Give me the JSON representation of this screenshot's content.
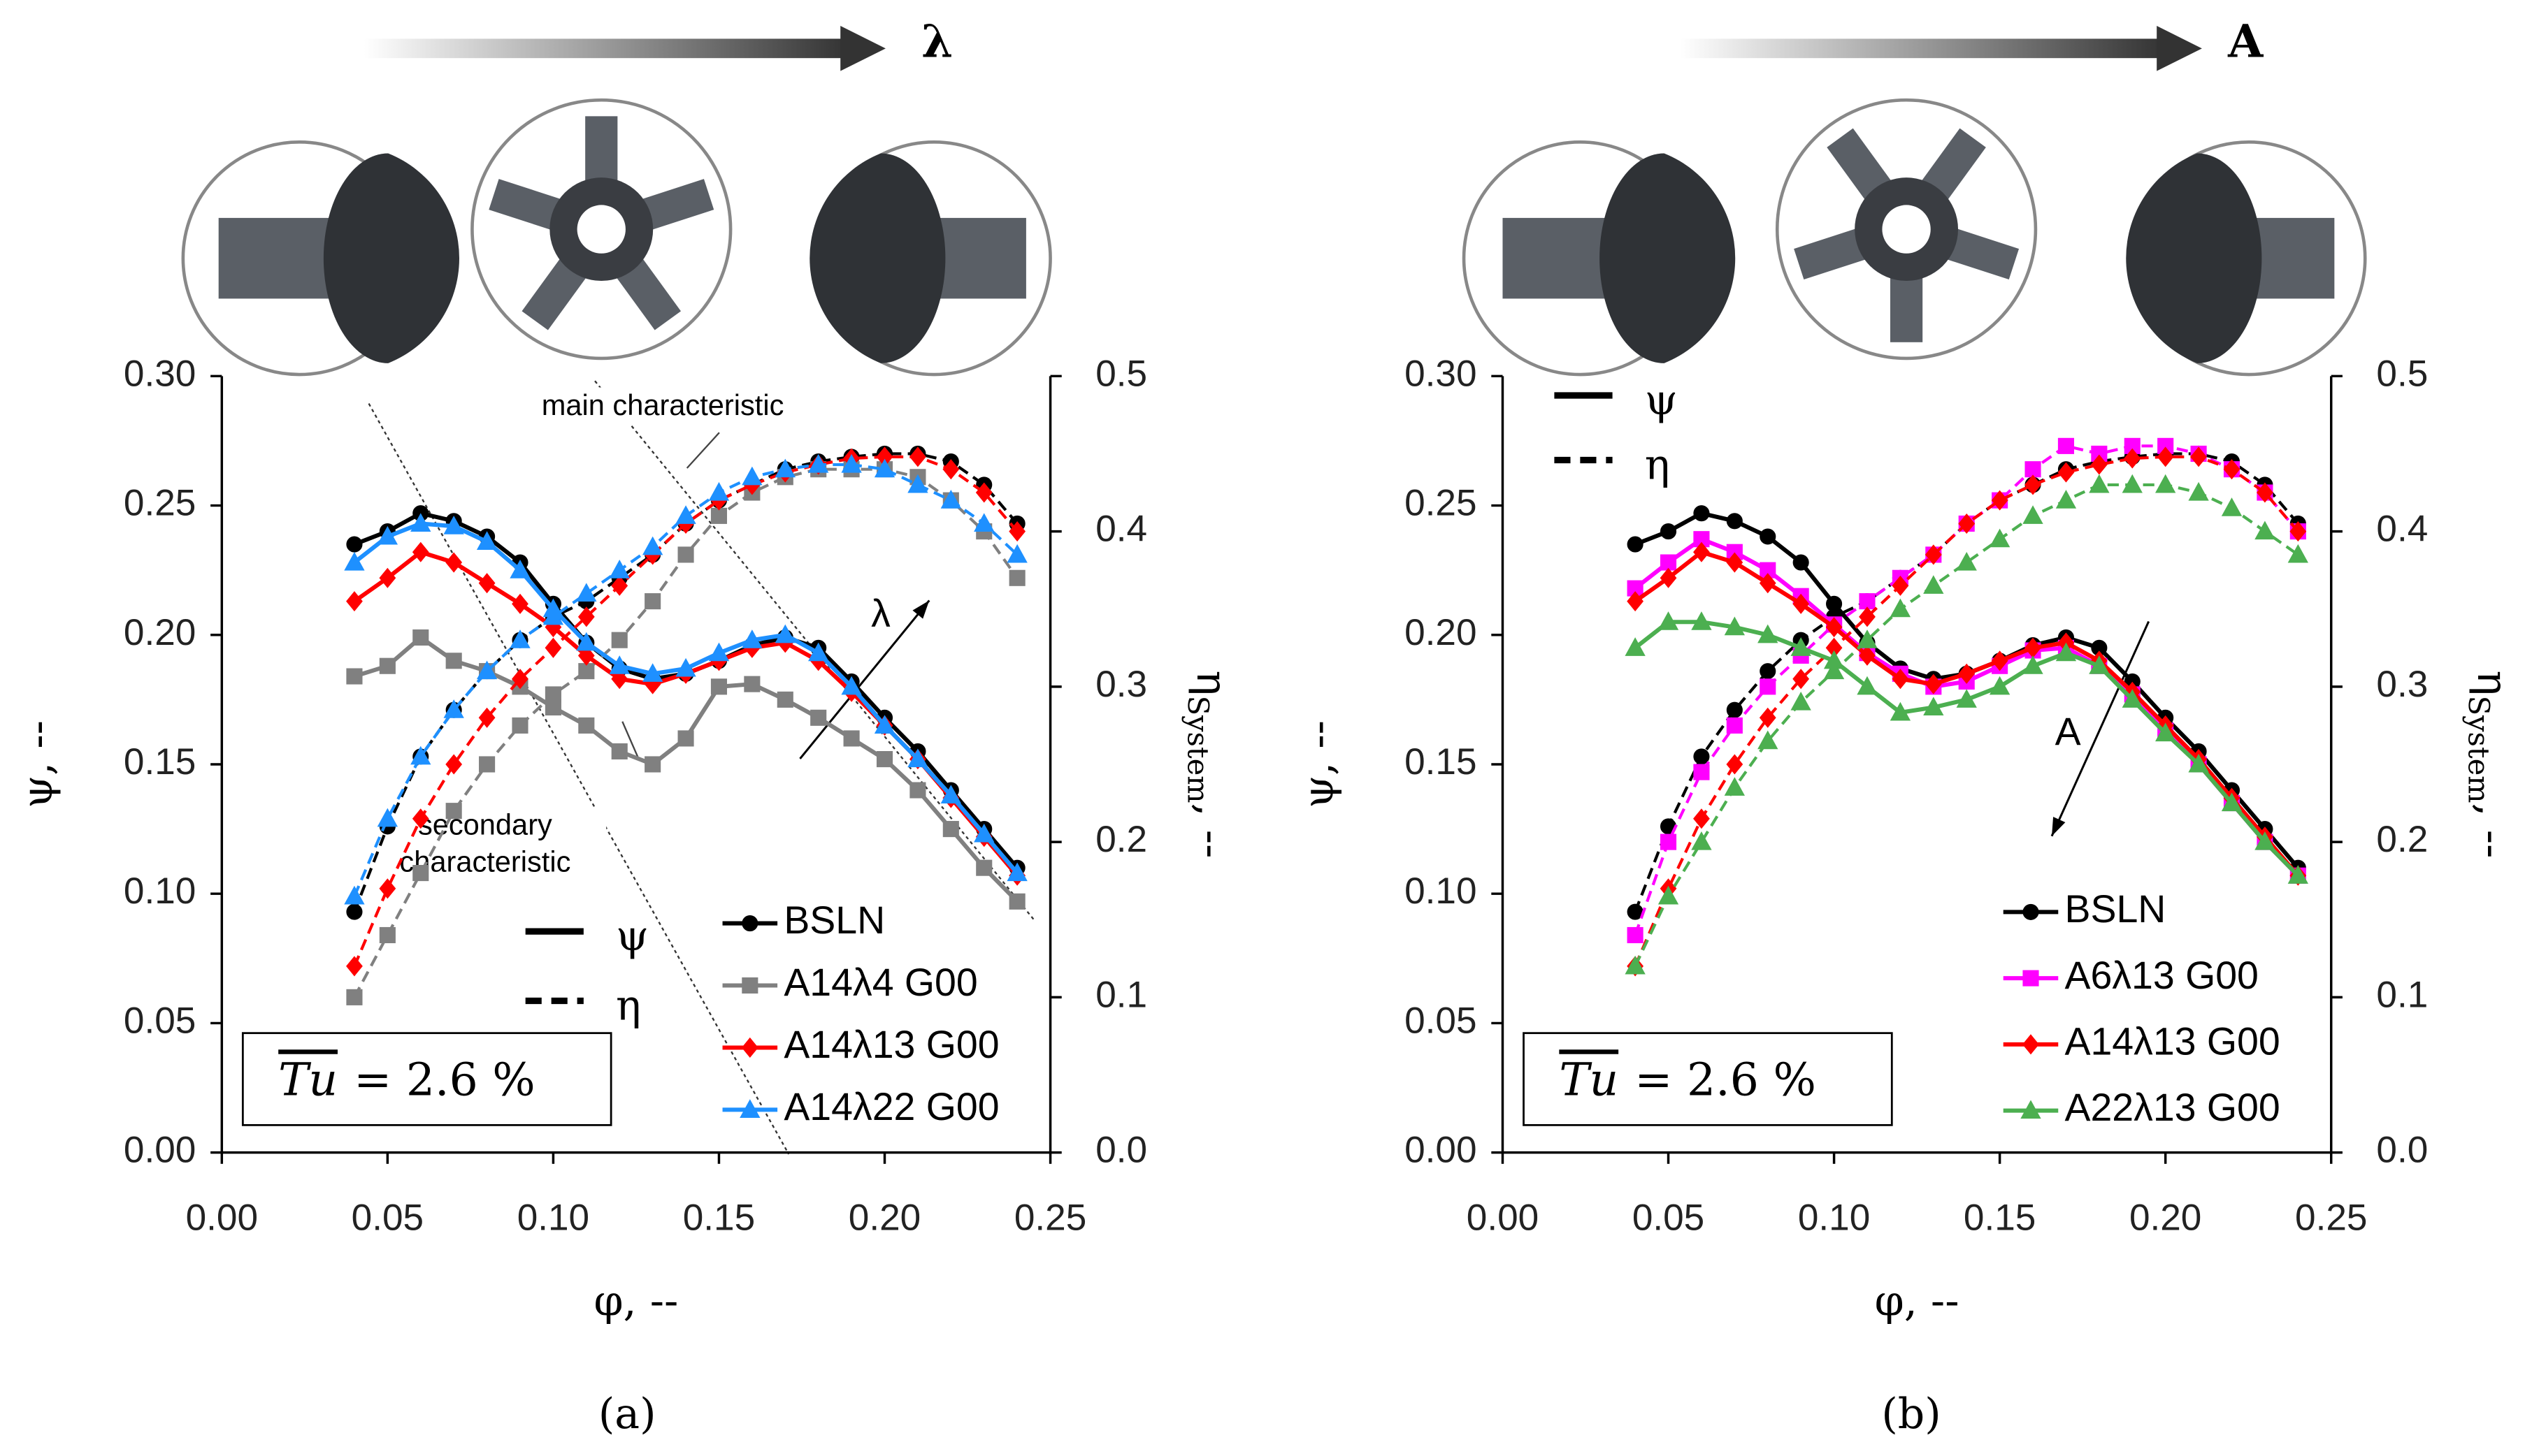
{
  "chart_data": [
    {
      "type": "line",
      "panel_label": "(a)",
      "top_arrow_label": "λ",
      "trend_label": "λ",
      "xlabel": "φ, --",
      "ylabel": "ψ, --",
      "y2label": {
        "symbol": "η",
        "subscript": "System",
        "suffix": ", --"
      },
      "style_legend": [
        "ψ",
        "η"
      ],
      "tu": {
        "symbol": "Tu",
        "text": "= 2.6 %"
      },
      "annotations": [
        "main characteristic",
        "secondary characteristic"
      ],
      "xlim": [
        0,
        0.25
      ],
      "ylim": [
        0,
        0.3
      ],
      "y2lim": [
        0,
        0.5
      ],
      "xticks": [
        {
          "value": 0,
          "label": "0.00"
        },
        {
          "value": 0.05,
          "label": "0.05"
        },
        {
          "value": 0.1,
          "label": "0.10"
        },
        {
          "value": 0.15,
          "label": "0.15"
        },
        {
          "value": 0.2,
          "label": "0.20"
        },
        {
          "value": 0.25,
          "label": "0.25"
        }
      ],
      "yticks": [
        {
          "value": 0,
          "label": "0.00"
        },
        {
          "value": 0.05,
          "label": "0.05"
        },
        {
          "value": 0.1,
          "label": "0.10"
        },
        {
          "value": 0.15,
          "label": "0.15"
        },
        {
          "value": 0.2,
          "label": "0.20"
        },
        {
          "value": 0.25,
          "label": "0.25"
        },
        {
          "value": 0.3,
          "label": "0.30"
        }
      ],
      "y2ticks": [
        {
          "value": 0,
          "label": "0.0"
        },
        0.1,
        0.2,
        0.3,
        0.4,
        0.5
      ],
      "x": [
        0.04,
        0.05,
        0.06,
        0.07,
        0.08,
        0.09,
        0.1,
        0.11,
        0.12,
        0.13,
        0.14,
        0.15,
        0.16,
        0.17,
        0.18,
        0.19,
        0.2,
        0.21,
        0.22,
        0.23,
        0.24
      ],
      "series": [
        {
          "name": "BSLN",
          "color": "#000000",
          "marker": "circle",
          "values": [
            0.235,
            0.24,
            0.247,
            0.244,
            0.238,
            0.228,
            0.212,
            0.197,
            0.187,
            0.183,
            0.185,
            0.19,
            0.196,
            0.199,
            0.195,
            0.182,
            0.168,
            0.155,
            0.14,
            0.125,
            0.11
          ],
          "y2_values": [
            0.155,
            0.21,
            0.255,
            0.285,
            0.31,
            0.33,
            0.345,
            0.355,
            0.37,
            0.385,
            0.405,
            0.42,
            0.43,
            0.44,
            0.445,
            0.448,
            0.45,
            0.45,
            0.445,
            0.43,
            0.405
          ]
        },
        {
          "name": "A14λ4 G00",
          "color": "#808080",
          "marker": "square",
          "values": [
            0.184,
            0.188,
            0.199,
            0.19,
            0.186,
            0.18,
            0.172,
            0.165,
            0.155,
            0.15,
            0.16,
            0.18,
            0.181,
            0.175,
            0.168,
            0.16,
            0.152,
            0.14,
            0.125,
            0.11,
            0.097
          ],
          "y2_values": [
            0.1,
            0.14,
            0.18,
            0.22,
            0.25,
            0.275,
            0.295,
            0.31,
            0.33,
            0.355,
            0.385,
            0.41,
            0.425,
            0.435,
            0.44,
            0.44,
            0.44,
            0.435,
            0.42,
            0.4,
            0.37
          ]
        },
        {
          "name": "A14λ13 G00",
          "color": "#ff0000",
          "marker": "diamond",
          "values": [
            0.213,
            0.222,
            0.232,
            0.228,
            0.22,
            0.212,
            0.203,
            0.192,
            0.183,
            0.181,
            0.185,
            0.19,
            0.195,
            0.197,
            0.19,
            0.178,
            0.165,
            0.152,
            0.137,
            0.122,
            0.107
          ],
          "y2_values": [
            0.12,
            0.17,
            0.215,
            0.25,
            0.28,
            0.305,
            0.325,
            0.345,
            0.365,
            0.385,
            0.405,
            0.42,
            0.43,
            0.438,
            0.443,
            0.447,
            0.448,
            0.448,
            0.44,
            0.425,
            0.4
          ]
        },
        {
          "name": "A14λ22 G00",
          "color": "#1e90ff",
          "marker": "triangle",
          "values": [
            0.228,
            0.238,
            0.243,
            0.242,
            0.236,
            0.225,
            0.21,
            0.197,
            0.188,
            0.185,
            0.187,
            0.193,
            0.198,
            0.2,
            0.193,
            0.18,
            0.165,
            0.152,
            0.138,
            0.123,
            0.108
          ],
          "y2_values": [
            0.165,
            0.215,
            0.255,
            0.285,
            0.31,
            0.33,
            0.345,
            0.36,
            0.375,
            0.39,
            0.41,
            0.425,
            0.435,
            0.44,
            0.443,
            0.443,
            0.44,
            0.43,
            0.42,
            0.405,
            0.385
          ]
        }
      ]
    },
    {
      "type": "line",
      "panel_label": "(b)",
      "top_arrow_label": "A",
      "trend_label": "A",
      "xlabel": "φ, --",
      "ylabel": "ψ, --",
      "y2label": {
        "symbol": "η",
        "subscript": "System",
        "suffix": ", --"
      },
      "style_legend": [
        "ψ",
        "η"
      ],
      "tu": {
        "symbol": "Tu",
        "text": "= 2.6 %"
      },
      "annotations": [],
      "xlim": [
        0,
        0.25
      ],
      "ylim": [
        0,
        0.3
      ],
      "y2lim": [
        0,
        0.5
      ],
      "xticks": [
        {
          "value": 0,
          "label": "0.00"
        },
        {
          "value": 0.05,
          "label": "0.05"
        },
        {
          "value": 0.1,
          "label": "0.10"
        },
        {
          "value": 0.15,
          "label": "0.15"
        },
        {
          "value": 0.2,
          "label": "0.20"
        },
        {
          "value": 0.25,
          "label": "0.25"
        }
      ],
      "yticks": [
        {
          "value": 0,
          "label": "0.00"
        },
        {
          "value": 0.05,
          "label": "0.05"
        },
        {
          "value": 0.1,
          "label": "0.10"
        },
        {
          "value": 0.15,
          "label": "0.15"
        },
        {
          "value": 0.2,
          "label": "0.20"
        },
        {
          "value": 0.25,
          "label": "0.25"
        },
        {
          "value": 0.3,
          "label": "0.30"
        }
      ],
      "y2ticks": [
        {
          "value": 0,
          "label": "0.0"
        },
        0.1,
        0.2,
        0.3,
        0.4,
        0.5
      ],
      "x": [
        0.04,
        0.05,
        0.06,
        0.07,
        0.08,
        0.09,
        0.1,
        0.11,
        0.12,
        0.13,
        0.14,
        0.15,
        0.16,
        0.17,
        0.18,
        0.19,
        0.2,
        0.21,
        0.22,
        0.23,
        0.24
      ],
      "series": [
        {
          "name": "BSLN",
          "color": "#000000",
          "marker": "circle",
          "values": [
            0.235,
            0.24,
            0.247,
            0.244,
            0.238,
            0.228,
            0.212,
            0.197,
            0.187,
            0.183,
            0.185,
            0.19,
            0.196,
            0.199,
            0.195,
            0.182,
            0.168,
            0.155,
            0.14,
            0.125,
            0.11
          ],
          "y2_values": [
            0.155,
            0.21,
            0.255,
            0.285,
            0.31,
            0.33,
            0.345,
            0.355,
            0.37,
            0.385,
            0.405,
            0.42,
            0.43,
            0.44,
            0.445,
            0.448,
            0.45,
            0.45,
            0.445,
            0.43,
            0.405
          ]
        },
        {
          "name": "A6λ13 G00",
          "color": "#ff00ff",
          "marker": "square",
          "values": [
            0.218,
            0.228,
            0.237,
            0.232,
            0.225,
            0.215,
            0.204,
            0.193,
            0.185,
            0.18,
            0.182,
            0.188,
            0.194,
            0.195,
            0.188,
            0.177,
            0.163,
            0.15,
            0.135,
            0.12,
            0.107
          ],
          "y2_values": [
            0.14,
            0.2,
            0.245,
            0.275,
            0.3,
            0.32,
            0.34,
            0.355,
            0.37,
            0.385,
            0.405,
            0.42,
            0.44,
            0.455,
            0.45,
            0.455,
            0.455,
            0.45,
            0.44,
            0.425,
            0.4
          ]
        },
        {
          "name": "A14λ13 G00",
          "color": "#ff0000",
          "marker": "diamond",
          "values": [
            0.213,
            0.222,
            0.232,
            0.228,
            0.22,
            0.212,
            0.203,
            0.192,
            0.183,
            0.181,
            0.185,
            0.19,
            0.195,
            0.197,
            0.19,
            0.178,
            0.165,
            0.152,
            0.137,
            0.122,
            0.107
          ],
          "y2_values": [
            0.12,
            0.17,
            0.215,
            0.25,
            0.28,
            0.305,
            0.325,
            0.345,
            0.365,
            0.385,
            0.405,
            0.42,
            0.43,
            0.438,
            0.443,
            0.447,
            0.448,
            0.448,
            0.44,
            0.425,
            0.4
          ]
        },
        {
          "name": "A22λ13 G00",
          "color": "#4caf50",
          "marker": "triangle",
          "values": [
            0.195,
            0.205,
            0.205,
            0.203,
            0.2,
            0.195,
            0.19,
            0.18,
            0.17,
            0.172,
            0.175,
            0.18,
            0.188,
            0.193,
            0.188,
            0.175,
            0.162,
            0.15,
            0.135,
            0.12,
            0.107
          ],
          "y2_values": [
            0.12,
            0.165,
            0.2,
            0.235,
            0.265,
            0.29,
            0.31,
            0.33,
            0.35,
            0.365,
            0.38,
            0.395,
            0.41,
            0.42,
            0.43,
            0.43,
            0.43,
            0.425,
            0.415,
            0.4,
            0.385
          ]
        }
      ]
    }
  ]
}
